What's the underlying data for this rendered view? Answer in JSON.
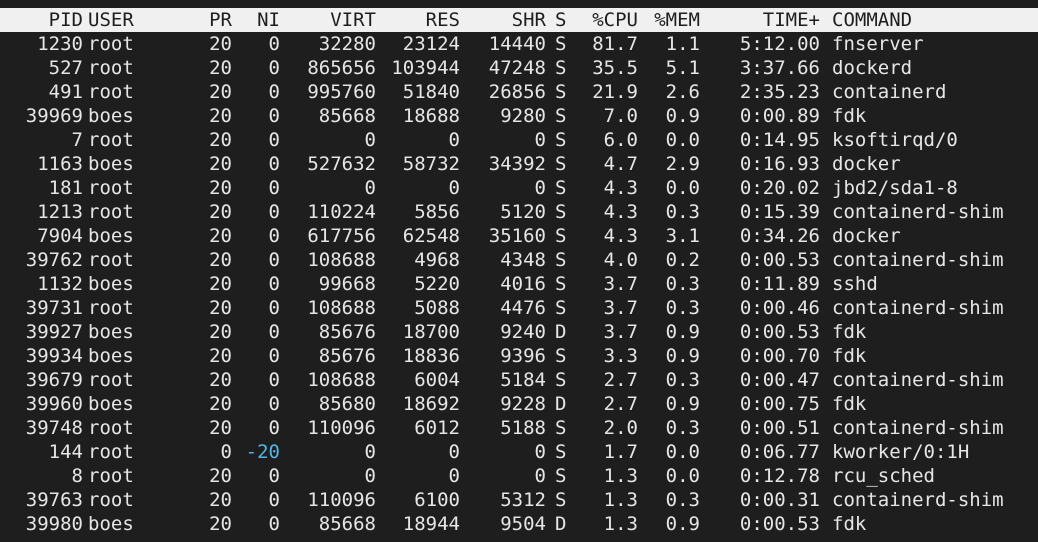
{
  "colors": {
    "background": "#1e1e1e",
    "foreground": "#e6e6e6",
    "header_background": "#f0f0f0",
    "header_foreground": "#1e1e1e",
    "negative_nice": "#4fb6e6"
  },
  "headers": {
    "pid": "PID",
    "user": "USER",
    "pr": "PR",
    "ni": "NI",
    "virt": "VIRT",
    "res": "RES",
    "shr": "SHR",
    "s": "S",
    "cpu": "%CPU",
    "mem": "%MEM",
    "time": "TIME+",
    "command": "COMMAND"
  },
  "processes": [
    {
      "pid": "1230",
      "user": "root",
      "pr": "20",
      "ni": "0",
      "virt": "32280",
      "res": "23124",
      "shr": "14440",
      "s": "S",
      "cpu": "81.7",
      "mem": "1.1",
      "time": "5:12.00",
      "command": "fnserver"
    },
    {
      "pid": "527",
      "user": "root",
      "pr": "20",
      "ni": "0",
      "virt": "865656",
      "res": "103944",
      "shr": "47248",
      "s": "S",
      "cpu": "35.5",
      "mem": "5.1",
      "time": "3:37.66",
      "command": "dockerd"
    },
    {
      "pid": "491",
      "user": "root",
      "pr": "20",
      "ni": "0",
      "virt": "995760",
      "res": "51840",
      "shr": "26856",
      "s": "S",
      "cpu": "21.9",
      "mem": "2.6",
      "time": "2:35.23",
      "command": "containerd"
    },
    {
      "pid": "39969",
      "user": "boes",
      "pr": "20",
      "ni": "0",
      "virt": "85668",
      "res": "18688",
      "shr": "9280",
      "s": "S",
      "cpu": "7.0",
      "mem": "0.9",
      "time": "0:00.89",
      "command": "fdk"
    },
    {
      "pid": "7",
      "user": "root",
      "pr": "20",
      "ni": "0",
      "virt": "0",
      "res": "0",
      "shr": "0",
      "s": "S",
      "cpu": "6.0",
      "mem": "0.0",
      "time": "0:14.95",
      "command": "ksoftirqd/0"
    },
    {
      "pid": "1163",
      "user": "boes",
      "pr": "20",
      "ni": "0",
      "virt": "527632",
      "res": "58732",
      "shr": "34392",
      "s": "S",
      "cpu": "4.7",
      "mem": "2.9",
      "time": "0:16.93",
      "command": "docker"
    },
    {
      "pid": "181",
      "user": "root",
      "pr": "20",
      "ni": "0",
      "virt": "0",
      "res": "0",
      "shr": "0",
      "s": "S",
      "cpu": "4.3",
      "mem": "0.0",
      "time": "0:20.02",
      "command": "jbd2/sda1-8"
    },
    {
      "pid": "1213",
      "user": "root",
      "pr": "20",
      "ni": "0",
      "virt": "110224",
      "res": "5856",
      "shr": "5120",
      "s": "S",
      "cpu": "4.3",
      "mem": "0.3",
      "time": "0:15.39",
      "command": "containerd-shim"
    },
    {
      "pid": "7904",
      "user": "boes",
      "pr": "20",
      "ni": "0",
      "virt": "617756",
      "res": "62548",
      "shr": "35160",
      "s": "S",
      "cpu": "4.3",
      "mem": "3.1",
      "time": "0:34.26",
      "command": "docker"
    },
    {
      "pid": "39762",
      "user": "root",
      "pr": "20",
      "ni": "0",
      "virt": "108688",
      "res": "4968",
      "shr": "4348",
      "s": "S",
      "cpu": "4.0",
      "mem": "0.2",
      "time": "0:00.53",
      "command": "containerd-shim"
    },
    {
      "pid": "1132",
      "user": "boes",
      "pr": "20",
      "ni": "0",
      "virt": "99668",
      "res": "5220",
      "shr": "4016",
      "s": "S",
      "cpu": "3.7",
      "mem": "0.3",
      "time": "0:11.89",
      "command": "sshd"
    },
    {
      "pid": "39731",
      "user": "root",
      "pr": "20",
      "ni": "0",
      "virt": "108688",
      "res": "5088",
      "shr": "4476",
      "s": "S",
      "cpu": "3.7",
      "mem": "0.3",
      "time": "0:00.46",
      "command": "containerd-shim"
    },
    {
      "pid": "39927",
      "user": "boes",
      "pr": "20",
      "ni": "0",
      "virt": "85676",
      "res": "18700",
      "shr": "9240",
      "s": "D",
      "cpu": "3.7",
      "mem": "0.9",
      "time": "0:00.53",
      "command": "fdk"
    },
    {
      "pid": "39934",
      "user": "boes",
      "pr": "20",
      "ni": "0",
      "virt": "85676",
      "res": "18836",
      "shr": "9396",
      "s": "S",
      "cpu": "3.3",
      "mem": "0.9",
      "time": "0:00.70",
      "command": "fdk"
    },
    {
      "pid": "39679",
      "user": "root",
      "pr": "20",
      "ni": "0",
      "virt": "108688",
      "res": "6004",
      "shr": "5184",
      "s": "S",
      "cpu": "2.7",
      "mem": "0.3",
      "time": "0:00.47",
      "command": "containerd-shim"
    },
    {
      "pid": "39960",
      "user": "boes",
      "pr": "20",
      "ni": "0",
      "virt": "85680",
      "res": "18692",
      "shr": "9228",
      "s": "D",
      "cpu": "2.7",
      "mem": "0.9",
      "time": "0:00.75",
      "command": "fdk"
    },
    {
      "pid": "39748",
      "user": "root",
      "pr": "20",
      "ni": "0",
      "virt": "110096",
      "res": "6012",
      "shr": "5188",
      "s": "S",
      "cpu": "2.0",
      "mem": "0.3",
      "time": "0:00.51",
      "command": "containerd-shim"
    },
    {
      "pid": "144",
      "user": "root",
      "pr": "0",
      "ni": "-20",
      "virt": "0",
      "res": "0",
      "shr": "0",
      "s": "S",
      "cpu": "1.7",
      "mem": "0.0",
      "time": "0:06.77",
      "command": "kworker/0:1H"
    },
    {
      "pid": "8",
      "user": "root",
      "pr": "20",
      "ni": "0",
      "virt": "0",
      "res": "0",
      "shr": "0",
      "s": "S",
      "cpu": "1.3",
      "mem": "0.0",
      "time": "0:12.78",
      "command": "rcu_sched"
    },
    {
      "pid": "39763",
      "user": "root",
      "pr": "20",
      "ni": "0",
      "virt": "110096",
      "res": "6100",
      "shr": "5312",
      "s": "S",
      "cpu": "1.3",
      "mem": "0.3",
      "time": "0:00.31",
      "command": "containerd-shim"
    },
    {
      "pid": "39980",
      "user": "boes",
      "pr": "20",
      "ni": "0",
      "virt": "85668",
      "res": "18944",
      "shr": "9504",
      "s": "D",
      "cpu": "1.3",
      "mem": "0.9",
      "time": "0:00.53",
      "command": "fdk"
    }
  ]
}
